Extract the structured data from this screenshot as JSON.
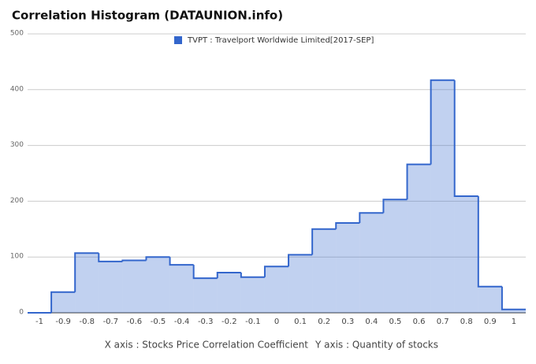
{
  "chart_data": {
    "type": "histogram",
    "title": "Correlation Histogram (DATAUNION.info)",
    "series_name": "TVPT : Travelport Worldwide Limited[2017-SEP]",
    "color": "#3366cc",
    "xlabel": "X axis : Stocks Price Correlation Coefficient",
    "ylabel": "Y axis : Quantity of stocks",
    "bins": [
      -1.05,
      -0.95,
      -0.85,
      -0.75,
      -0.65,
      -0.55,
      -0.45,
      -0.35,
      -0.25,
      -0.15,
      -0.05,
      0.05,
      0.15,
      0.25,
      0.35,
      0.45,
      0.55,
      0.65,
      0.75,
      0.85,
      0.95,
      1.05
    ],
    "values": [
      0,
      37,
      107,
      92,
      94,
      100,
      86,
      62,
      72,
      64,
      83,
      104,
      150,
      161,
      179,
      203,
      266,
      417,
      209,
      47,
      6
    ],
    "xlim": [
      -1.05,
      1.05
    ],
    "xticks": [
      -1,
      -0.9,
      -0.8,
      -0.7,
      -0.6,
      -0.5,
      -0.4,
      -0.3,
      -0.2,
      -0.1,
      0,
      0.1,
      0.2,
      0.3,
      0.4,
      0.5,
      0.6,
      0.7,
      0.8,
      0.9,
      1
    ],
    "ylim": [
      0,
      500
    ],
    "yticks": [
      0,
      100,
      200,
      300,
      400,
      500
    ],
    "grid": true
  }
}
